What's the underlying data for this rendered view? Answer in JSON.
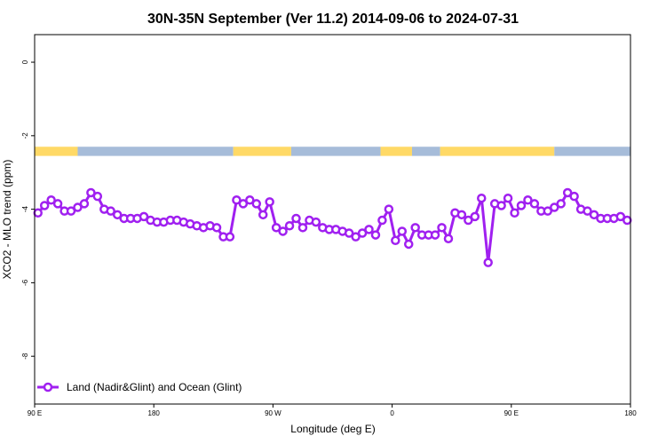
{
  "chart_data": {
    "type": "line",
    "title": "30N-35N September (Ver 11.2)   2014-09-06 to 2024-07-31",
    "xlabel": "Longitude (deg E)",
    "ylabel": "XCO2 - MLO trend (ppm)",
    "xlim": [
      90,
      450
    ],
    "ylim": [
      -9.3,
      0.75
    ],
    "x_ticks": [
      {
        "value": 90,
        "label": "90 E"
      },
      {
        "value": 162,
        "label": "180"
      },
      {
        "value": 234,
        "label": "90 W"
      },
      {
        "value": 306,
        "label": "0"
      },
      {
        "value": 378,
        "label": "90 E"
      },
      {
        "value": 450,
        "label": "180"
      }
    ],
    "y_ticks": [
      {
        "value": 0,
        "label": "0"
      },
      {
        "value": -2,
        "label": "-2"
      },
      {
        "value": -4,
        "label": "-4"
      },
      {
        "value": -6,
        "label": "-6"
      },
      {
        "value": -8,
        "label": "-8"
      }
    ],
    "colors": {
      "land": "#ffd966",
      "ocean": "#a6bcd9",
      "series": "#a020f0"
    },
    "surface_strip": {
      "y_range": [
        -2.55,
        -2.3
      ],
      "segments": [
        {
          "from": 90,
          "to": 116,
          "type": "land"
        },
        {
          "from": 116,
          "to": 210,
          "type": "ocean"
        },
        {
          "from": 210,
          "to": 245,
          "type": "land"
        },
        {
          "from": 245,
          "to": 299,
          "type": "ocean"
        },
        {
          "from": 299,
          "to": 318,
          "type": "land"
        },
        {
          "from": 318,
          "to": 335,
          "type": "ocean"
        },
        {
          "from": 335,
          "to": 404,
          "type": "land"
        },
        {
          "from": 404,
          "to": 450,
          "type": "ocean"
        }
      ]
    },
    "legend_position": "bottom-left",
    "series": [
      {
        "name": "Land (Nadir&Glint) and Ocean (Glint)",
        "x": [
          92,
          96,
          100,
          104,
          108,
          112,
          116,
          120,
          124,
          128,
          132,
          136,
          140,
          144,
          148,
          152,
          156,
          160,
          164,
          168,
          172,
          176,
          180,
          184,
          188,
          192,
          196,
          200,
          204,
          208,
          212,
          216,
          220,
          224,
          228,
          232,
          236,
          240,
          244,
          248,
          252,
          256,
          260,
          264,
          268,
          272,
          276,
          280,
          284,
          288,
          292,
          296,
          300,
          304,
          308,
          312,
          316,
          320,
          324,
          328,
          332,
          336,
          340,
          344,
          348,
          352,
          356,
          360,
          364,
          368,
          372,
          376,
          380,
          384,
          388,
          392,
          396,
          400,
          404,
          408,
          412,
          416,
          420,
          424,
          428,
          432,
          436,
          440,
          444,
          448
        ],
        "values": [
          -4.1,
          -3.9,
          -3.75,
          -3.85,
          -4.05,
          -4.05,
          -3.95,
          -3.85,
          -3.55,
          -3.65,
          -4.0,
          -4.05,
          -4.15,
          -4.25,
          -4.25,
          -4.25,
          -4.2,
          -4.3,
          -4.35,
          -4.35,
          -4.3,
          -4.3,
          -4.35,
          -4.4,
          -4.45,
          -4.5,
          -4.45,
          -4.5,
          -4.75,
          -4.75,
          -3.75,
          -3.85,
          -3.75,
          -3.85,
          -4.15,
          -3.8,
          -4.5,
          -4.6,
          -4.45,
          -4.25,
          -4.5,
          -4.3,
          -4.35,
          -4.5,
          -4.55,
          -4.55,
          -4.6,
          -4.65,
          -4.75,
          -4.65,
          -4.55,
          -4.7,
          -4.3,
          -4.0,
          -4.85,
          -4.6,
          -4.95,
          -4.5,
          -4.7,
          -4.7,
          -4.7,
          -4.5,
          -4.8,
          -4.1,
          -4.15,
          -4.3,
          -4.2,
          -3.7,
          -5.45,
          -3.85,
          -3.9,
          -3.7,
          -4.1,
          -3.9,
          -3.75,
          -3.85,
          -4.05,
          -4.05,
          -3.95,
          -3.85,
          -3.55,
          -3.65,
          -4.0,
          -4.05,
          -4.15,
          -4.25,
          -4.25,
          -4.25,
          -4.2,
          -4.3
        ]
      }
    ]
  }
}
